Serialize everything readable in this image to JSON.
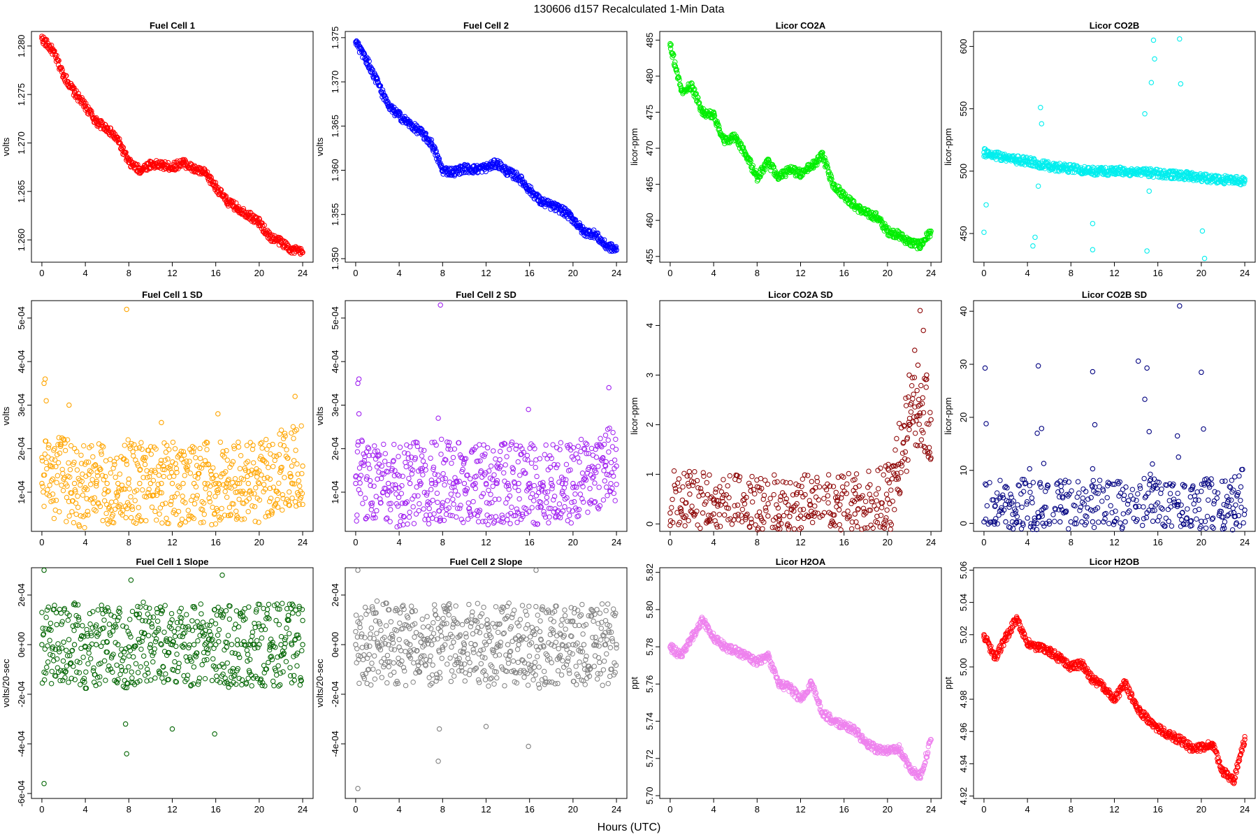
{
  "figure": {
    "title": "130606   d157   Recalculated 1-Min Data",
    "xlabel": "Hours (UTC)"
  },
  "chart_data": [
    {
      "type": "scatter",
      "title": "Fuel Cell 1",
      "ylabel": "volts",
      "color": "#ff0000",
      "xlim": [
        0,
        24
      ],
      "ylim": [
        1.2577,
        1.2815
      ],
      "xticks": [
        "0",
        "4",
        "8",
        "12",
        "16",
        "20",
        "24"
      ],
      "yticks": [
        "1.260",
        "1.265",
        "1.270",
        "1.275",
        "1.280"
      ],
      "x": [
        0,
        1,
        2,
        3,
        4,
        5,
        6,
        7,
        8,
        9,
        10,
        11,
        12,
        13,
        14,
        15,
        16,
        17,
        18,
        19,
        20,
        21,
        22,
        23,
        24
      ],
      "y": [
        1.2808,
        1.2795,
        1.277,
        1.2752,
        1.2738,
        1.2722,
        1.2715,
        1.2703,
        1.268,
        1.2672,
        1.2678,
        1.2677,
        1.2675,
        1.268,
        1.2673,
        1.2669,
        1.2655,
        1.264,
        1.2633,
        1.2626,
        1.2618,
        1.2603,
        1.2598,
        1.259,
        1.2587
      ],
      "outliers": []
    },
    {
      "type": "scatter",
      "title": "Fuel Cell 2",
      "ylabel": "volts",
      "color": "#0000ff",
      "xlim": [
        0,
        24
      ],
      "ylim": [
        1.3496,
        1.3757
      ],
      "xticks": [
        "0",
        "4",
        "8",
        "12",
        "16",
        "20",
        "24"
      ],
      "yticks": [
        "1.350",
        "1.355",
        "1.360",
        "1.365",
        "1.370",
        "1.375"
      ],
      "x": [
        0,
        1,
        2,
        3,
        4,
        5,
        6,
        7,
        8,
        9,
        10,
        11,
        12,
        13,
        14,
        15,
        16,
        17,
        18,
        19,
        20,
        21,
        22,
        23,
        24
      ],
      "y": [
        1.3745,
        1.3725,
        1.37,
        1.3672,
        1.3662,
        1.3652,
        1.3643,
        1.363,
        1.36,
        1.3598,
        1.3602,
        1.3601,
        1.3603,
        1.3608,
        1.3598,
        1.3592,
        1.3578,
        1.3565,
        1.356,
        1.3555,
        1.3545,
        1.353,
        1.3528,
        1.3515,
        1.351
      ],
      "outliers": []
    },
    {
      "type": "scatter",
      "title": "Licor CO2A",
      "ylabel": "licor-ppm",
      "color": "#00ee00",
      "xlim": [
        0,
        24
      ],
      "ylim": [
        454.2,
        486.2
      ],
      "xticks": [
        "0",
        "4",
        "8",
        "12",
        "16",
        "20",
        "24"
      ],
      "yticks": [
        "455",
        "460",
        "465",
        "470",
        "475",
        "480",
        "485"
      ],
      "x": [
        0,
        1,
        2,
        3,
        4,
        5,
        6,
        7,
        8,
        9,
        10,
        11,
        12,
        13,
        14,
        15,
        16,
        17,
        18,
        19,
        20,
        21,
        22,
        23,
        24
      ],
      "y": [
        484.5,
        478.0,
        478.5,
        475.0,
        474.5,
        471.0,
        471.5,
        469.0,
        466.0,
        468.0,
        466.0,
        467.0,
        466.5,
        467.5,
        469.0,
        465.0,
        463.5,
        462.0,
        461.0,
        460.5,
        458.5,
        458.0,
        457.0,
        456.5,
        458.5
      ],
      "outliers": []
    },
    {
      "type": "scatter",
      "title": "Licor CO2B",
      "ylabel": "licor-ppm",
      "color": "#00eeee",
      "xlim": [
        0,
        24
      ],
      "ylim": [
        427,
        612
      ],
      "xticks": [
        "0",
        "4",
        "8",
        "12",
        "16",
        "20",
        "24"
      ],
      "yticks": [
        "450",
        "500",
        "550",
        "600"
      ],
      "x": [
        0,
        1,
        2,
        3,
        4,
        5,
        6,
        7,
        8,
        9,
        10,
        11,
        12,
        13,
        14,
        15,
        16,
        17,
        18,
        19,
        20,
        21,
        22,
        23,
        24
      ],
      "y": [
        515,
        513,
        511,
        509,
        508,
        506,
        504,
        503,
        502,
        501,
        500,
        500,
        500,
        500,
        499,
        499,
        498,
        497,
        497,
        496,
        495,
        494,
        493,
        493,
        492
      ],
      "outliers": [
        [
          0,
          451
        ],
        [
          0.2,
          473
        ],
        [
          4.5,
          440
        ],
        [
          4.7,
          447
        ],
        [
          5.2,
          551
        ],
        [
          5.3,
          538
        ],
        [
          10.0,
          437
        ],
        [
          10.0,
          458
        ],
        [
          15.0,
          436
        ],
        [
          15.2,
          484
        ],
        [
          15.6,
          605
        ],
        [
          15.7,
          590
        ],
        [
          18.0,
          606
        ],
        [
          18.1,
          570
        ],
        [
          20.3,
          430
        ],
        [
          20.1,
          452
        ],
        [
          5.0,
          488
        ],
        [
          14.8,
          546
        ],
        [
          15.4,
          571
        ]
      ]
    },
    {
      "type": "scatter",
      "title": "Fuel Cell 1 SD",
      "ylabel": "volts",
      "color": "#ffa500",
      "xlim": [
        0,
        24
      ],
      "ylim": [
        1e-05,
        0.00054
      ],
      "xticks": [
        "0",
        "4",
        "8",
        "12",
        "16",
        "20",
        "24"
      ],
      "yticks": [
        "1e-04",
        "2e-04",
        "3e-04",
        "4e-04",
        "5e-04"
      ],
      "x": [
        0,
        1,
        2,
        3,
        4,
        5,
        6,
        7,
        8,
        9,
        10,
        11,
        12,
        13,
        14,
        15,
        16,
        17,
        18,
        19,
        20,
        21,
        22,
        23,
        24
      ],
      "y": [
        0.00012,
        0.00013,
        0.00013,
        0.00012,
        0.00011,
        0.00012,
        0.00012,
        0.00012,
        0.00013,
        0.00012,
        0.00012,
        0.00012,
        0.00012,
        0.00012,
        0.00012,
        0.00012,
        0.00012,
        0.00012,
        0.00012,
        0.00012,
        0.00012,
        0.00013,
        0.00015,
        0.00016,
        0.00016
      ],
      "outliers": [
        [
          0.2,
          0.00035
        ],
        [
          0.3,
          0.00036
        ],
        [
          0.4,
          0.00031
        ],
        [
          2.5,
          0.0003
        ],
        [
          7.8,
          0.00052
        ],
        [
          23.3,
          0.00032
        ],
        [
          16.2,
          0.00028
        ],
        [
          11.0,
          0.00026
        ]
      ]
    },
    {
      "type": "scatter",
      "title": "Fuel Cell 2 SD",
      "ylabel": "volts",
      "color": "#a020f0",
      "xlim": [
        0,
        24
      ],
      "ylim": [
        1e-05,
        0.00054
      ],
      "xticks": [
        "0",
        "4",
        "8",
        "12",
        "16",
        "20",
        "24"
      ],
      "yticks": [
        "1e-04",
        "2e-04",
        "3e-04",
        "4e-04",
        "5e-04"
      ],
      "x": [
        0,
        1,
        2,
        3,
        4,
        5,
        6,
        7,
        8,
        9,
        10,
        11,
        12,
        13,
        14,
        15,
        16,
        17,
        18,
        19,
        20,
        21,
        22,
        23,
        24
      ],
      "y": [
        0.00012,
        0.00013,
        0.00013,
        0.00012,
        0.00011,
        0.00012,
        0.00012,
        0.00012,
        0.00013,
        0.00012,
        0.00012,
        0.00012,
        0.00012,
        0.00012,
        0.00012,
        0.00012,
        0.00012,
        0.00012,
        0.00012,
        0.00012,
        0.00012,
        0.00013,
        0.00015,
        0.00016,
        0.00016
      ],
      "outliers": [
        [
          0.2,
          0.00035
        ],
        [
          0.3,
          0.00036
        ],
        [
          0.3,
          0.00028
        ],
        [
          7.8,
          0.00053
        ],
        [
          7.6,
          0.00027
        ],
        [
          15.9,
          0.00029
        ],
        [
          23.3,
          0.00034
        ]
      ]
    },
    {
      "type": "scatter",
      "title": "Licor CO2A SD",
      "ylabel": "licor-ppm",
      "color": "#8b0000",
      "xlim": [
        0,
        24
      ],
      "ylim": [
        -0.15,
        4.5
      ],
      "xticks": [
        "0",
        "4",
        "8",
        "12",
        "16",
        "20",
        "24"
      ],
      "yticks": [
        "0",
        "1",
        "2",
        "3",
        "4"
      ],
      "x": [
        0,
        1,
        2,
        3,
        4,
        5,
        6,
        7,
        8,
        9,
        10,
        11,
        12,
        13,
        14,
        15,
        16,
        17,
        18,
        19,
        20,
        21,
        22,
        23,
        24
      ],
      "y": [
        0.22,
        0.25,
        0.24,
        0.22,
        0.2,
        0.18,
        0.17,
        0.17,
        0.16,
        0.16,
        0.16,
        0.15,
        0.16,
        0.17,
        0.17,
        0.18,
        0.2,
        0.2,
        0.22,
        0.3,
        0.5,
        1.2,
        2.0,
        2.4,
        2.1
      ],
      "outliers": [
        [
          22.0,
          3.0
        ],
        [
          22.5,
          3.5
        ],
        [
          23.0,
          4.3
        ],
        [
          23.3,
          3.9
        ],
        [
          22.8,
          3.2
        ],
        [
          23.6,
          3.0
        ],
        [
          1.8,
          0.6
        ],
        [
          4.0,
          0.5
        ]
      ]
    },
    {
      "type": "scatter",
      "title": "Licor CO2B SD",
      "ylabel": "licor-ppm",
      "color": "#000080",
      "xlim": [
        0,
        24
      ],
      "ylim": [
        -1.5,
        42
      ],
      "xticks": [
        "0",
        "4",
        "8",
        "12",
        "16",
        "20",
        "24"
      ],
      "yticks": [
        "0",
        "10",
        "20",
        "30",
        "40"
      ],
      "x": [
        0,
        1,
        2,
        3,
        4,
        5,
        6,
        7,
        8,
        9,
        10,
        11,
        12,
        13,
        14,
        15,
        16,
        17,
        18,
        19,
        20,
        21,
        22,
        23,
        24
      ],
      "y": [
        0.3,
        0.3,
        0.3,
        0.3,
        1.0,
        1.2,
        0.4,
        0.3,
        0.3,
        0.3,
        0.3,
        0.3,
        0.3,
        0.3,
        0.4,
        2.0,
        0.5,
        0.4,
        1.5,
        0.4,
        0.4,
        0.8,
        1.2,
        2.0,
        2.5
      ],
      "outliers": [
        [
          0.1,
          29.3
        ],
        [
          0.2,
          18.8
        ],
        [
          4.2,
          10.3
        ],
        [
          5.0,
          29.7
        ],
        [
          5.3,
          17.9
        ],
        [
          5.5,
          11.3
        ],
        [
          4.9,
          17.0
        ],
        [
          10.0,
          28.6
        ],
        [
          10.2,
          18.6
        ],
        [
          10.0,
          10.3
        ],
        [
          14.2,
          30.6
        ],
        [
          14.8,
          23.4
        ],
        [
          15.0,
          29.3
        ],
        [
          15.2,
          17.3
        ],
        [
          15.5,
          11.2
        ],
        [
          18.0,
          41.0
        ],
        [
          17.8,
          16.5
        ],
        [
          17.9,
          12.5
        ],
        [
          20.0,
          28.5
        ],
        [
          20.2,
          17.8
        ],
        [
          18.3,
          7.3
        ],
        [
          19.0,
          5.0
        ],
        [
          4.4,
          4.8
        ]
      ]
    },
    {
      "type": "scatter",
      "title": "Fuel Cell 1 Slope",
      "ylabel": "volts/20-sec",
      "color": "#006400",
      "xlim": [
        0,
        24
      ],
      "ylim": [
        -0.00062,
        0.00031
      ],
      "xticks": [
        "0",
        "4",
        "8",
        "12",
        "16",
        "20",
        "24"
      ],
      "yticks": [
        "-6e-04",
        "-4e-04",
        "-2e-04",
        "0e+00",
        "2e-04"
      ],
      "x": [
        0,
        1,
        2,
        3,
        4,
        5,
        6,
        7,
        8,
        9,
        10,
        11,
        12,
        13,
        14,
        15,
        16,
        17,
        18,
        19,
        20,
        21,
        22,
        23,
        24
      ],
      "y": [
        0.0,
        -1e-05,
        1e-05,
        0.0,
        -1e-05,
        0.0,
        1e-05,
        0.0,
        -1e-05,
        1e-05,
        0.0,
        0.0,
        0.0,
        -1e-05,
        0.0,
        0.0,
        0.0,
        -1e-05,
        0.0,
        0.0,
        0.0,
        0.0,
        0.0,
        0.0,
        0.0
      ],
      "outliers": [
        [
          0.2,
          0.0003
        ],
        [
          0.2,
          -0.00056
        ],
        [
          7.7,
          -0.00032
        ],
        [
          7.8,
          -0.00044
        ],
        [
          16.6,
          0.00028
        ],
        [
          15.9,
          -0.00036
        ],
        [
          8.2,
          0.00026
        ],
        [
          12.0,
          -0.00034
        ]
      ]
    },
    {
      "type": "scatter",
      "title": "Fuel Cell 2 Slope",
      "ylabel": "volts/20-sec",
      "color": "#7f7f7f",
      "xlim": [
        0,
        24
      ],
      "ylim": [
        -0.00062,
        0.00031
      ],
      "xticks": [
        "0",
        "4",
        "8",
        "12",
        "16",
        "20",
        "24"
      ],
      "yticks": [
        "-4e-04",
        "-2e-04",
        "0e+00",
        "2e-04"
      ],
      "x": [
        0,
        1,
        2,
        3,
        4,
        5,
        6,
        7,
        8,
        9,
        10,
        11,
        12,
        13,
        14,
        15,
        16,
        17,
        18,
        19,
        20,
        21,
        22,
        23,
        24
      ],
      "y": [
        0.0,
        -1e-05,
        1e-05,
        0.0,
        -1e-05,
        0.0,
        1e-05,
        0.0,
        -1e-05,
        1e-05,
        0.0,
        0.0,
        0.0,
        -1e-05,
        0.0,
        0.0,
        0.0,
        -1e-05,
        0.0,
        0.0,
        0.0,
        0.0,
        0.0,
        0.0,
        0.0
      ],
      "outliers": [
        [
          0.2,
          0.0003
        ],
        [
          0.2,
          -0.00058
        ],
        [
          7.7,
          -0.00034
        ],
        [
          7.6,
          -0.00047
        ],
        [
          16.6,
          0.0003
        ],
        [
          15.9,
          -0.00041
        ],
        [
          12.0,
          -0.00033
        ]
      ]
    },
    {
      "type": "scatter",
      "title": "Licor H2OA",
      "ylabel": "ppt",
      "color": "#ee82ee",
      "xlim": [
        0,
        24
      ],
      "ylim": [
        5.6985,
        5.8225
      ],
      "xticks": [
        "0",
        "4",
        "8",
        "12",
        "16",
        "20",
        "24"
      ],
      "yticks": [
        "5.70",
        "5.72",
        "5.74",
        "5.76",
        "5.78",
        "5.80",
        "5.82"
      ],
      "x": [
        0,
        1,
        2,
        3,
        4,
        5,
        6,
        7,
        8,
        9,
        10,
        11,
        12,
        13,
        14,
        15,
        16,
        17,
        18,
        19,
        20,
        21,
        22,
        23,
        24
      ],
      "y": [
        5.78,
        5.775,
        5.785,
        5.795,
        5.785,
        5.78,
        5.778,
        5.775,
        5.772,
        5.775,
        5.76,
        5.758,
        5.752,
        5.76,
        5.745,
        5.74,
        5.738,
        5.735,
        5.728,
        5.725,
        5.724,
        5.726,
        5.715,
        5.71,
        5.73
      ],
      "outliers": []
    },
    {
      "type": "scatter",
      "title": "Licor H2OB",
      "ylabel": "ppt",
      "color": "#ff0000",
      "xlim": [
        0,
        24
      ],
      "ylim": [
        4.9185,
        5.0615
      ],
      "xticks": [
        "0",
        "4",
        "8",
        "12",
        "16",
        "20",
        "24"
      ],
      "yticks": [
        "4.92",
        "4.94",
        "4.96",
        "4.98",
        "5.00",
        "5.02",
        "5.04",
        "5.06"
      ],
      "x": [
        0,
        1,
        2,
        3,
        4,
        5,
        6,
        7,
        8,
        9,
        10,
        11,
        12,
        13,
        14,
        15,
        16,
        17,
        18,
        19,
        20,
        21,
        22,
        23,
        24
      ],
      "y": [
        5.02,
        5.005,
        5.018,
        5.03,
        5.015,
        5.012,
        5.01,
        5.005,
        5.0,
        5.002,
        4.992,
        4.988,
        4.98,
        4.99,
        4.975,
        4.968,
        4.962,
        4.958,
        4.955,
        4.95,
        4.95,
        4.952,
        4.935,
        4.93,
        4.955
      ],
      "outliers": []
    }
  ]
}
